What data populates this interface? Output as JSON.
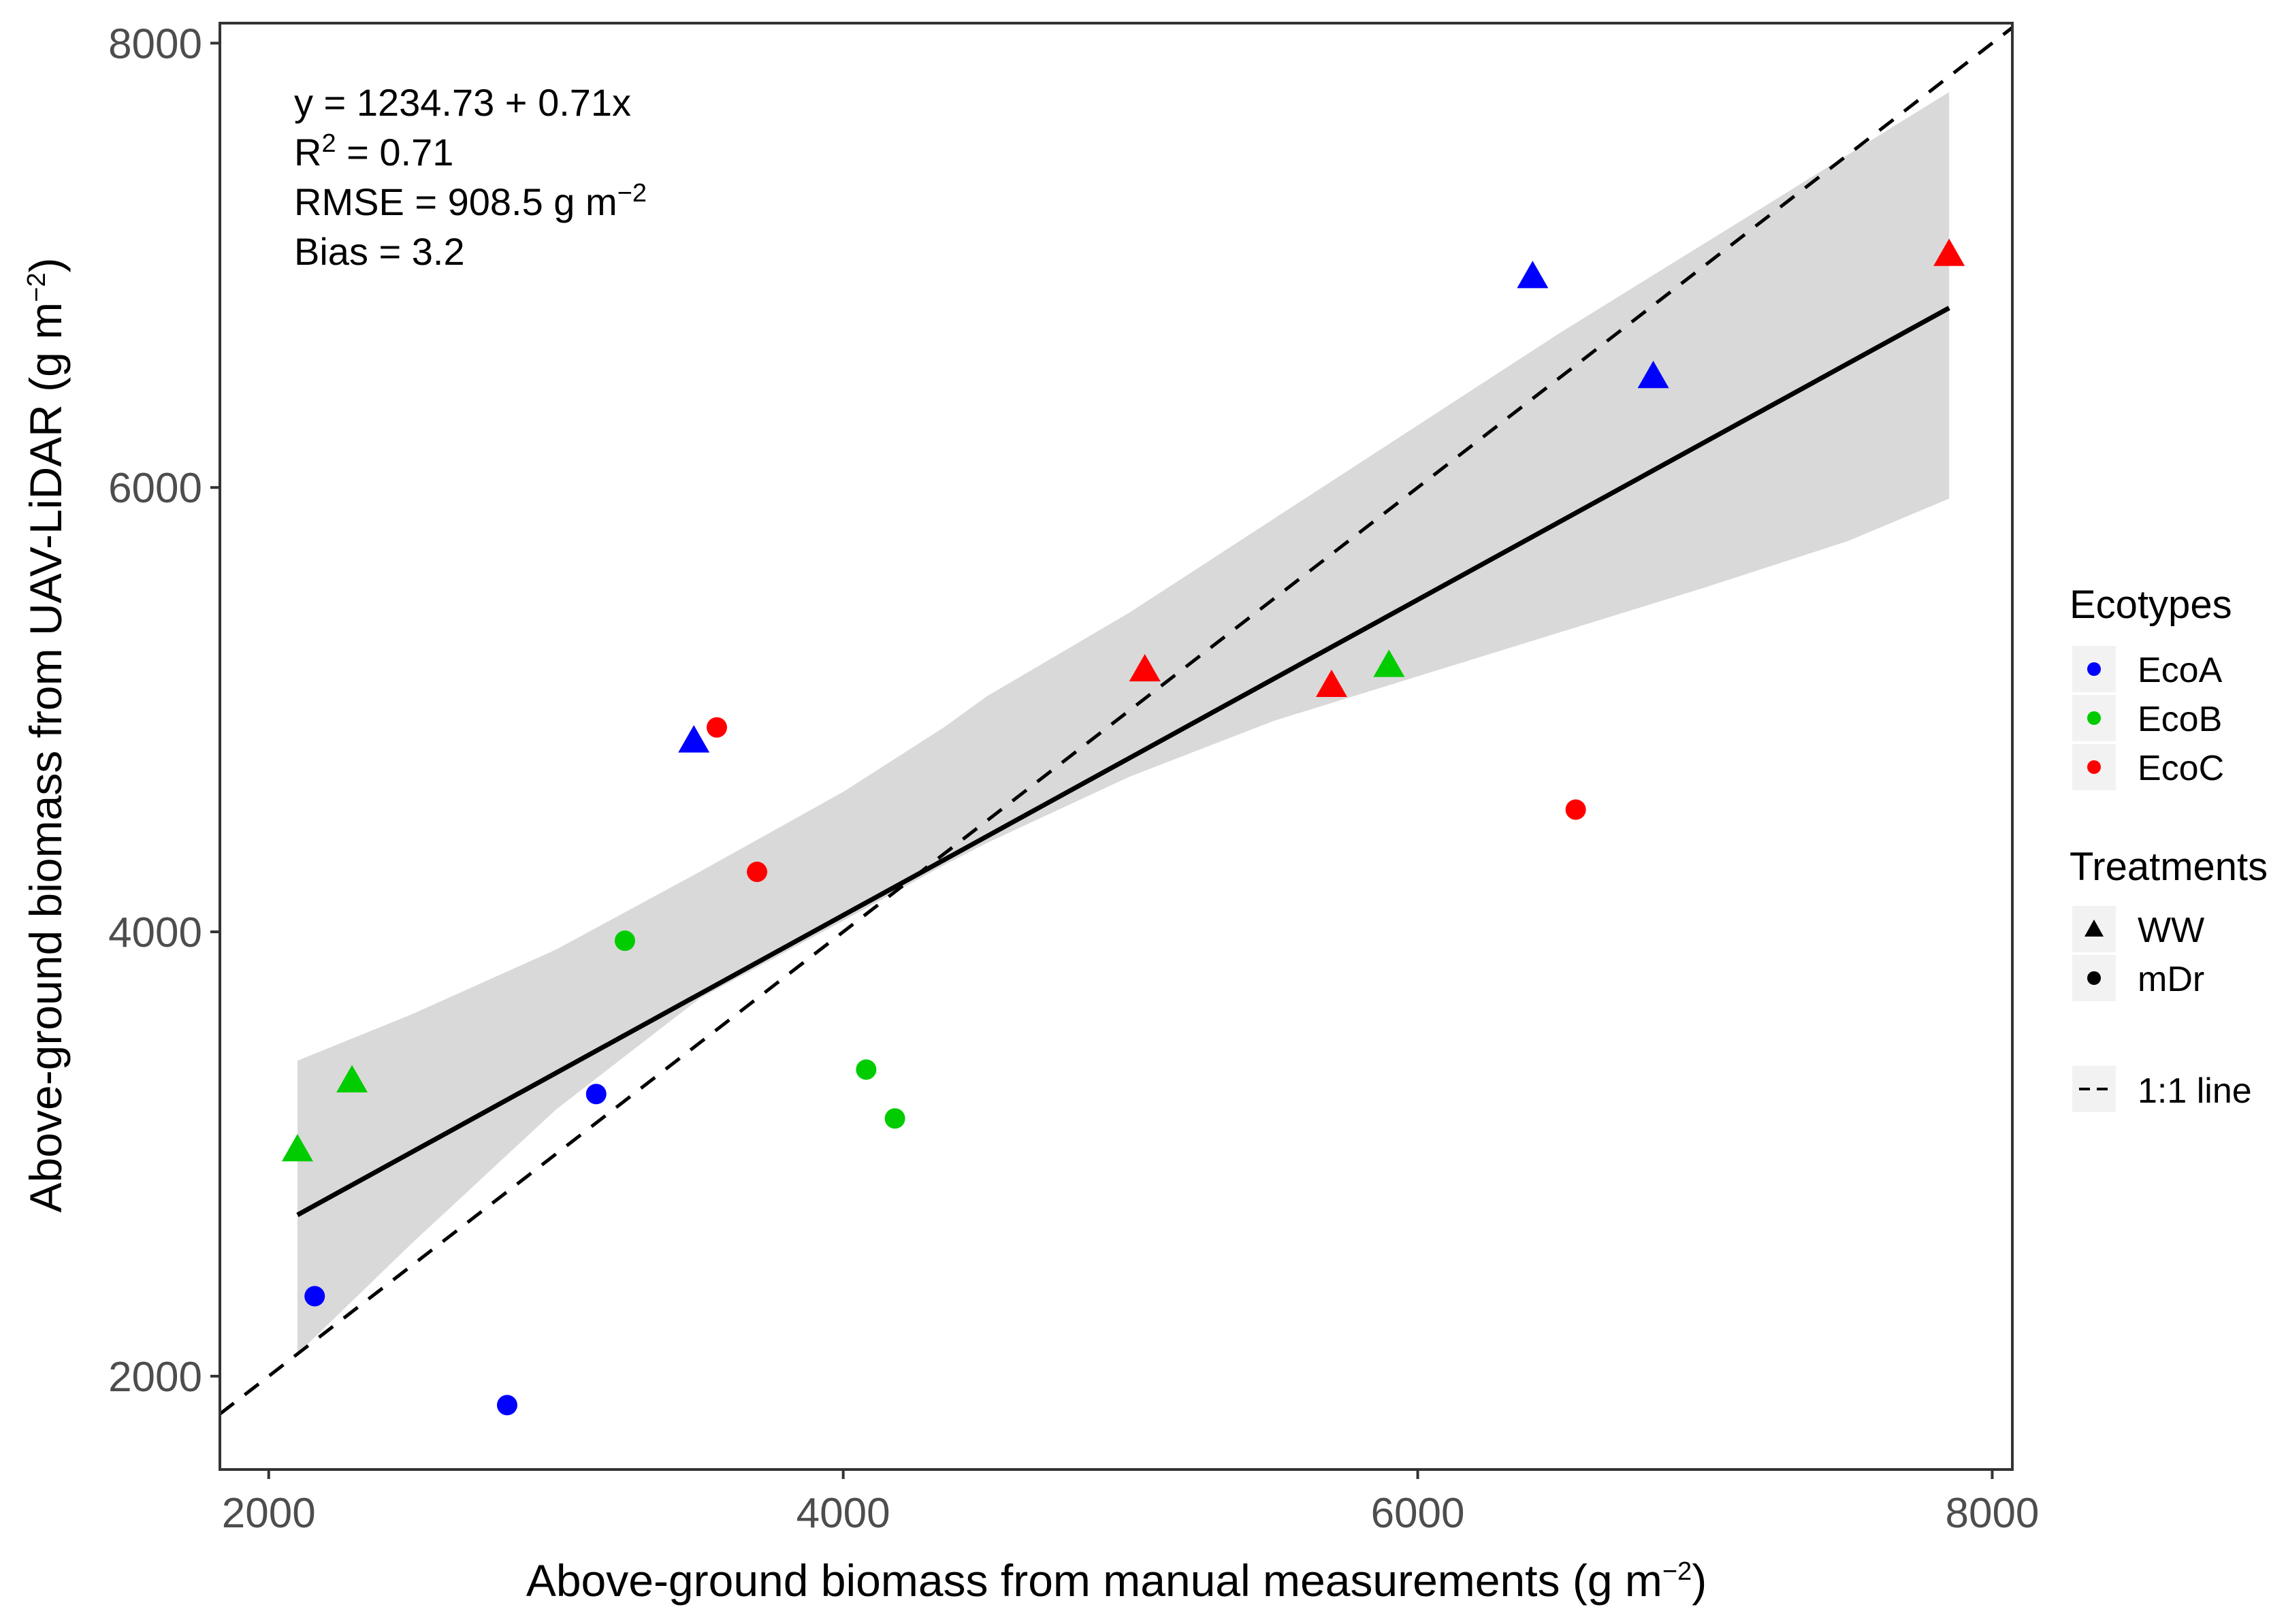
{
  "chart_data": {
    "type": "scatter",
    "xlabel_main": "Above-ground biomass from manual measurements (g m",
    "xlabel_sup": "−2",
    "xlabel_end": ")",
    "ylabel_main": "Above-ground biomass from UAV-LiDAR (g m",
    "ylabel_sup": "−2",
    "ylabel_end": ")",
    "xlim": [
      1830,
      8070
    ],
    "ylim": [
      1580,
      8090
    ],
    "xticks": [
      2000,
      4000,
      6000,
      8000
    ],
    "yticks": [
      2000,
      4000,
      6000,
      8000
    ],
    "xtick_labels": [
      "2000",
      "4000",
      "6000",
      "8000"
    ],
    "ytick_labels": [
      "2000",
      "4000",
      "6000",
      "8000"
    ],
    "grid": false,
    "annotations": {
      "equation": "y = 1234.73 + 0.71x",
      "r2_prefix": "R",
      "r2_sup": "2",
      "r2_value": " = 0.71",
      "rmse_main": "RMSE = 908.5 g m",
      "rmse_sup": "−2",
      "bias": "Bias = 3.2"
    },
    "regression": {
      "intercept": 1234.73,
      "slope": 0.71,
      "x_range": [
        2100,
        7850
      ]
    },
    "confidence_band": {
      "x": [
        2100,
        2500,
        3000,
        3500,
        4000,
        4350,
        4500,
        5000,
        5500,
        6000,
        6500,
        7000,
        7500,
        7850
      ],
      "lower": [
        2100,
        2600,
        3200,
        3700,
        4050,
        4300,
        4400,
        4700,
        4950,
        5150,
        5350,
        5550,
        5760,
        5950
      ],
      "upper": [
        3420,
        3630,
        3920,
        4270,
        4630,
        4920,
        5060,
        5440,
        5860,
        6280,
        6700,
        7100,
        7500,
        7780
      ]
    },
    "reference_line": {
      "label": "1:1 line",
      "slope": 1,
      "intercept": 0
    },
    "points": [
      {
        "x": 2100,
        "y": 3020,
        "ecotype": "EcoB",
        "treatment": "WW"
      },
      {
        "x": 2290,
        "y": 3330,
        "ecotype": "EcoB",
        "treatment": "WW"
      },
      {
        "x": 3480,
        "y": 4860,
        "ecotype": "EcoA",
        "treatment": "WW"
      },
      {
        "x": 5050,
        "y": 5180,
        "ecotype": "EcoC",
        "treatment": "WW"
      },
      {
        "x": 5700,
        "y": 5110,
        "ecotype": "EcoC",
        "treatment": "WW"
      },
      {
        "x": 5900,
        "y": 5200,
        "ecotype": "EcoB",
        "treatment": "WW"
      },
      {
        "x": 6400,
        "y": 6950,
        "ecotype": "EcoA",
        "treatment": "WW"
      },
      {
        "x": 6820,
        "y": 6500,
        "ecotype": "EcoA",
        "treatment": "WW"
      },
      {
        "x": 7850,
        "y": 7050,
        "ecotype": "EcoC",
        "treatment": "WW"
      },
      {
        "x": 2160,
        "y": 2360,
        "ecotype": "EcoA",
        "treatment": "mDr"
      },
      {
        "x": 2830,
        "y": 1870,
        "ecotype": "EcoA",
        "treatment": "mDr"
      },
      {
        "x": 3140,
        "y": 3270,
        "ecotype": "EcoA",
        "treatment": "mDr"
      },
      {
        "x": 3240,
        "y": 3960,
        "ecotype": "EcoB",
        "treatment": "mDr"
      },
      {
        "x": 3560,
        "y": 4920,
        "ecotype": "EcoC",
        "treatment": "mDr"
      },
      {
        "x": 3700,
        "y": 4270,
        "ecotype": "EcoC",
        "treatment": "mDr"
      },
      {
        "x": 4080,
        "y": 3380,
        "ecotype": "EcoB",
        "treatment": "mDr"
      },
      {
        "x": 4180,
        "y": 3160,
        "ecotype": "EcoB",
        "treatment": "mDr"
      },
      {
        "x": 6550,
        "y": 4550,
        "ecotype": "EcoC",
        "treatment": "mDr"
      }
    ],
    "legend": {
      "placement": "right",
      "ecotypes_title": "Ecotypes",
      "ecotypes": [
        {
          "label": "EcoA",
          "color": "#0000ff"
        },
        {
          "label": "EcoB",
          "color": "#00cc00"
        },
        {
          "label": "EcoC",
          "color": "#ff0000"
        }
      ],
      "treatments_title": "Treatments",
      "treatments": [
        {
          "label": "WW",
          "shape": "triangle"
        },
        {
          "label": "mDr",
          "shape": "circle"
        }
      ],
      "line_label": "1:1 line"
    }
  }
}
